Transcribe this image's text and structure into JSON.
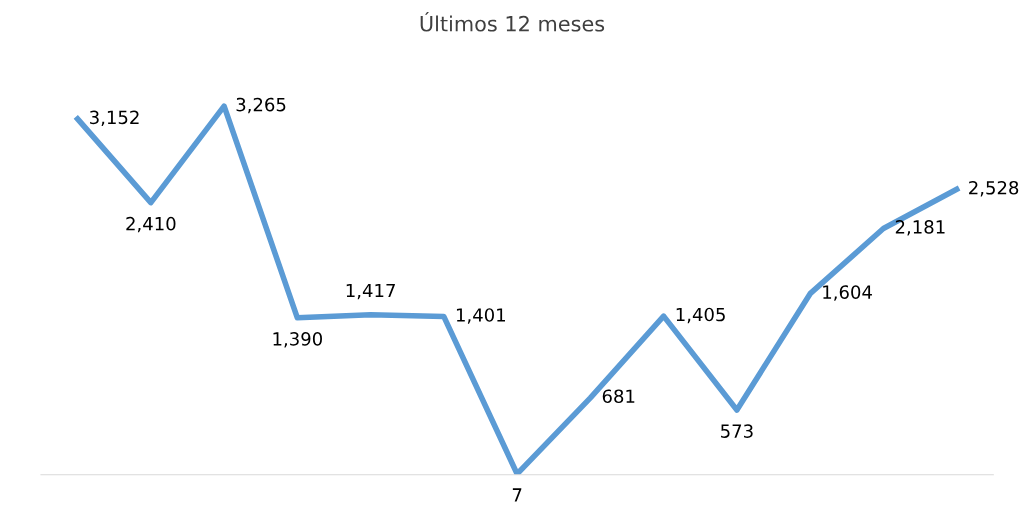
{
  "chart_data": {
    "type": "line",
    "title": "Últimos 12 meses",
    "categories": [
      null,
      null,
      null,
      null,
      null,
      null,
      null,
      null,
      null,
      null,
      null,
      null,
      null
    ],
    "series": [
      {
        "color": "#5b9bd5",
        "values": [
          3152,
          2410,
          3265,
          1390,
          1417,
          1401,
          7,
          681,
          1405,
          573,
          1604,
          2181,
          2528
        ],
        "value_labels": [
          "3,152",
          "2,410",
          "3,265",
          "1,390",
          "1,417",
          "1,401",
          "7",
          "681",
          "1,405",
          "573",
          "1,604",
          "2,181",
          "2,528"
        ]
      }
    ],
    "grid": false,
    "legend": false,
    "marker": "none",
    "line_style": "solid"
  }
}
